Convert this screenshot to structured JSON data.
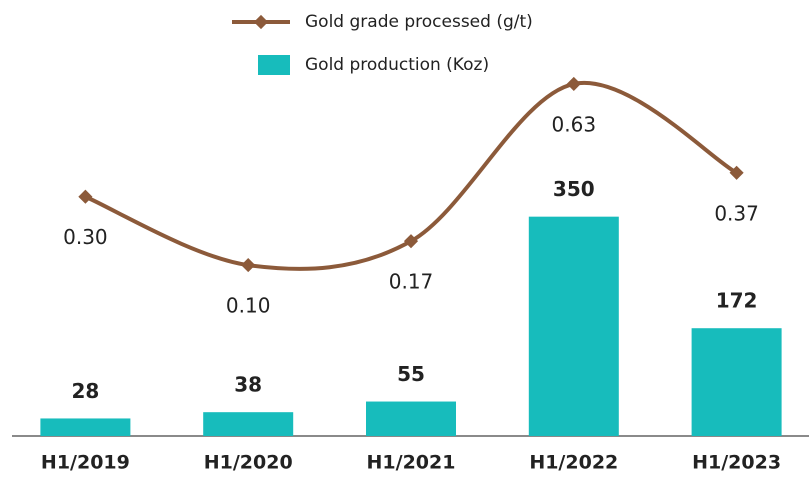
{
  "chart_data": {
    "type": "bar-line",
    "categories": [
      "H1/2019",
      "H1/2020",
      "H1/2021",
      "H1/2022",
      "H1/2023"
    ],
    "series": [
      {
        "name": "Gold production (Koz)",
        "type": "bar",
        "color": "#17bcbc",
        "values": [
          28,
          38,
          55,
          350,
          172
        ]
      },
      {
        "name": "Gold grade processed (g/t)",
        "type": "line",
        "axis": "y2",
        "color": "#8c5a3a",
        "values": [
          0.3,
          0.1,
          0.17,
          0.63,
          0.37
        ],
        "value_labels": [
          "0.30",
          "0.10",
          "0.17",
          "0.63",
          "0.37"
        ]
      }
    ],
    "ylim": [
      0,
      600
    ],
    "y2lim": [
      -0.4,
      0.7
    ]
  }
}
